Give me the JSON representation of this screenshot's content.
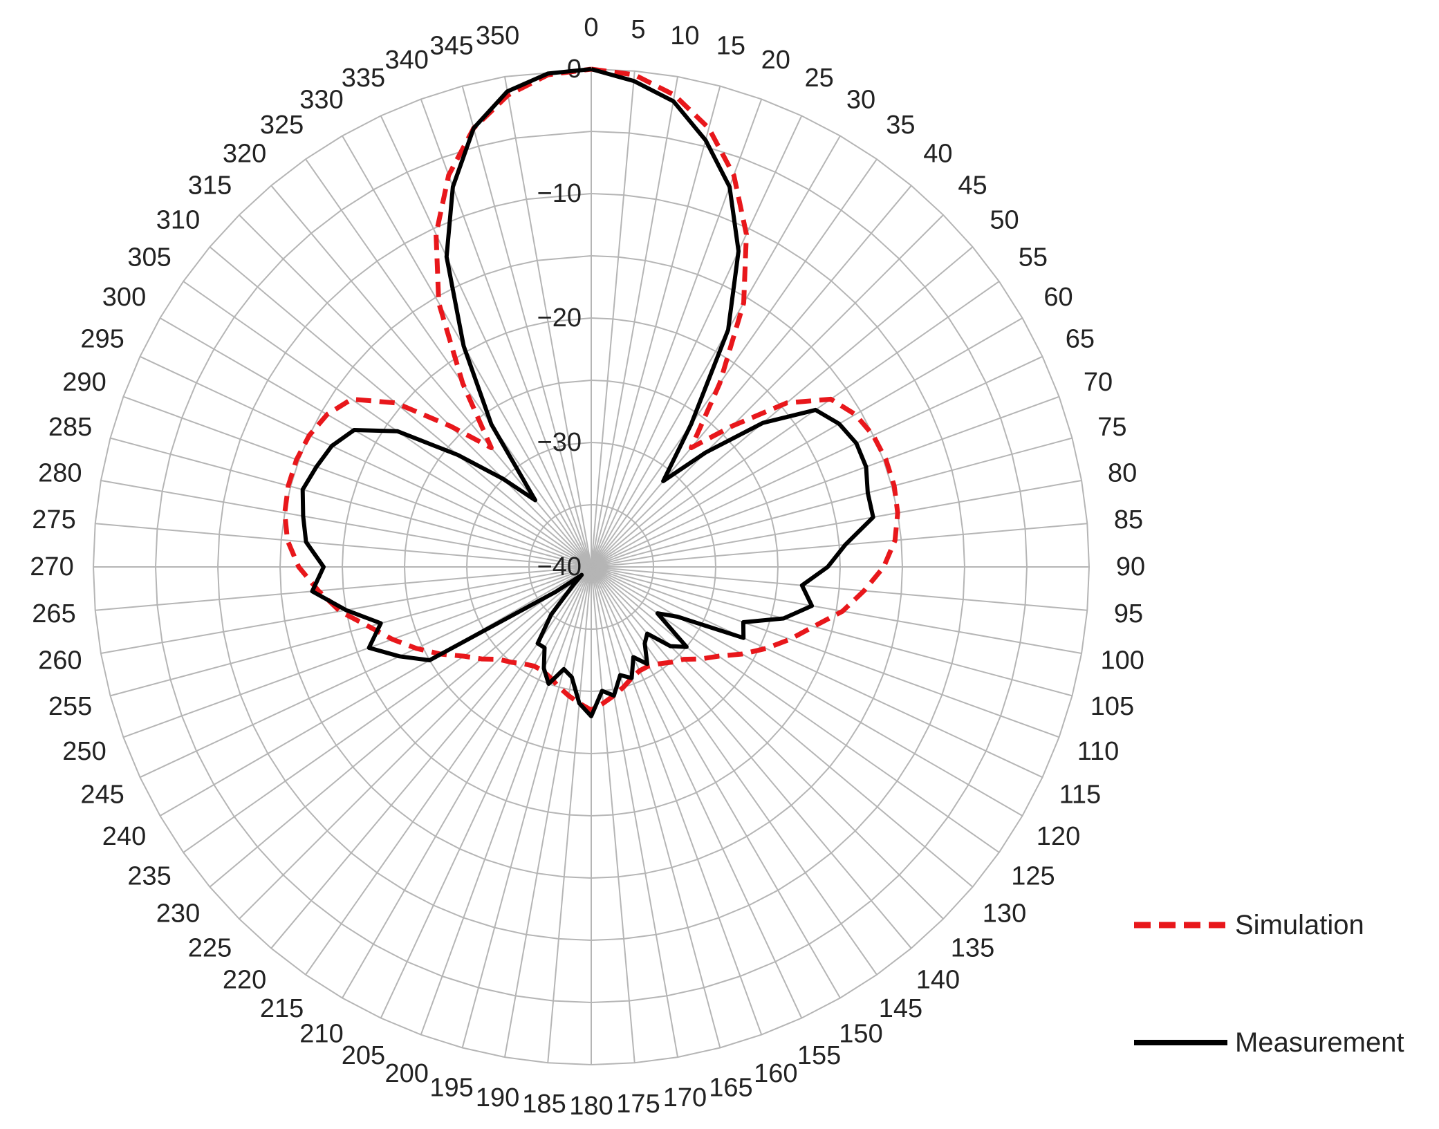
{
  "chart_data": {
    "type": "polar-line",
    "angle_unit": "deg",
    "angle_ticks": [
      0,
      5,
      10,
      15,
      20,
      25,
      30,
      35,
      40,
      45,
      50,
      55,
      60,
      65,
      70,
      75,
      80,
      85,
      90,
      95,
      100,
      105,
      110,
      115,
      120,
      125,
      130,
      135,
      140,
      145,
      150,
      155,
      160,
      165,
      170,
      175,
      180,
      185,
      190,
      195,
      200,
      205,
      210,
      215,
      220,
      225,
      230,
      235,
      240,
      245,
      250,
      255,
      260,
      265,
      270,
      275,
      280,
      285,
      290,
      295,
      300,
      305,
      310,
      315,
      320,
      325,
      330,
      335,
      340,
      345,
      350
    ],
    "radial_range": [
      -40,
      0
    ],
    "radial_ticks": [
      {
        "value": 0,
        "label": "0"
      },
      {
        "value": -10,
        "label": "−10"
      },
      {
        "value": -20,
        "label": "−20"
      },
      {
        "value": -30,
        "label": "−30"
      },
      {
        "value": -40,
        "label": "−40"
      }
    ],
    "ring_values": [
      0,
      -5,
      -10,
      -15,
      -20,
      -25,
      -30,
      -35
    ],
    "grid": true,
    "legend": {
      "position": "right"
    },
    "series": [
      {
        "name": "Simulation",
        "color": "#e8171b",
        "style": "dashed",
        "angles": [
          0,
          5,
          10,
          15,
          20,
          25,
          30,
          35,
          40,
          45,
          50,
          55,
          60,
          65,
          70,
          75,
          80,
          85,
          90,
          95,
          100,
          105,
          110,
          115,
          120,
          125,
          130,
          135,
          140,
          145,
          150,
          155,
          160,
          165,
          170,
          175,
          180,
          185,
          190,
          195,
          200,
          205,
          210,
          215,
          220,
          225,
          230,
          235,
          240,
          245,
          250,
          255,
          260,
          265,
          270,
          275,
          280,
          285,
          290,
          295,
          300,
          305,
          310,
          315,
          320,
          325,
          330,
          335,
          340,
          345,
          350,
          355,
          360
        ],
        "values": [
          0,
          -0.3,
          -1.5,
          -3.5,
          -6.5,
          -10.5,
          -15.5,
          -22,
          -27.5,
          -24,
          -19.5,
          -16.5,
          -15.5,
          -15,
          -14.8,
          -14.8,
          -15,
          -15.5,
          -16.5,
          -18,
          -19.5,
          -21.5,
          -23,
          -24.5,
          -26,
          -27.5,
          -28.5,
          -29.5,
          -30,
          -30.5,
          -30.8,
          -30.8,
          -30.5,
          -30,
          -29.5,
          -29,
          -28.5,
          -29,
          -29.5,
          -30,
          -30.5,
          -30.8,
          -30.8,
          -30.5,
          -30,
          -29.5,
          -28.5,
          -27.5,
          -26,
          -24.5,
          -23,
          -21.5,
          -19.5,
          -18,
          -16.5,
          -15.5,
          -15,
          -14.8,
          -14.8,
          -15,
          -15.5,
          -16.5,
          -19.5,
          -24,
          -27.5,
          -22,
          -15.5,
          -10.5,
          -6.5,
          -3.5,
          -1.5,
          -0.3,
          0
        ]
      },
      {
        "name": "Measurement",
        "color": "#000000",
        "style": "solid",
        "angles": [
          0,
          5,
          10,
          15,
          20,
          25,
          30,
          35,
          40,
          45,
          50,
          55,
          60,
          65,
          70,
          75,
          80,
          85,
          90,
          95,
          100,
          105,
          110,
          115,
          120,
          125,
          130,
          135,
          140,
          145,
          150,
          155,
          160,
          165,
          170,
          175,
          180,
          185,
          190,
          195,
          200,
          205,
          210,
          215,
          220,
          225,
          230,
          235,
          240,
          245,
          250,
          255,
          260,
          265,
          270,
          275,
          280,
          285,
          290,
          295,
          300,
          305,
          310,
          315,
          320,
          325,
          330,
          335,
          340,
          345,
          350,
          355,
          360
        ],
        "values": [
          0,
          -0.8,
          -2,
          -4.5,
          -7.5,
          -12,
          -18,
          -26,
          -31,
          -27,
          -22,
          -18,
          -17,
          -16.5,
          -16.5,
          -17,
          -17,
          -19.5,
          -21,
          -23,
          -22,
          -24,
          -27,
          -26.5,
          -32,
          -33.5,
          -30,
          -31,
          -33,
          -32.5,
          -31,
          -32,
          -30.5,
          -31,
          -29.5,
          -30,
          -28,
          -29,
          -31,
          -31.5,
          -30,
          -31,
          -32.5,
          -32.5,
          -35,
          -38,
          -39,
          -36.5,
          -25,
          -23,
          -21,
          -22.5,
          -20,
          -17.5,
          -18.5,
          -17,
          -16.5,
          -16,
          -16.5,
          -17,
          -18,
          -21,
          -26,
          -30,
          -33,
          -26,
          -19.5,
          -12.5,
          -7.5,
          -3.5,
          -1.2,
          -0.2,
          0
        ]
      }
    ]
  }
}
